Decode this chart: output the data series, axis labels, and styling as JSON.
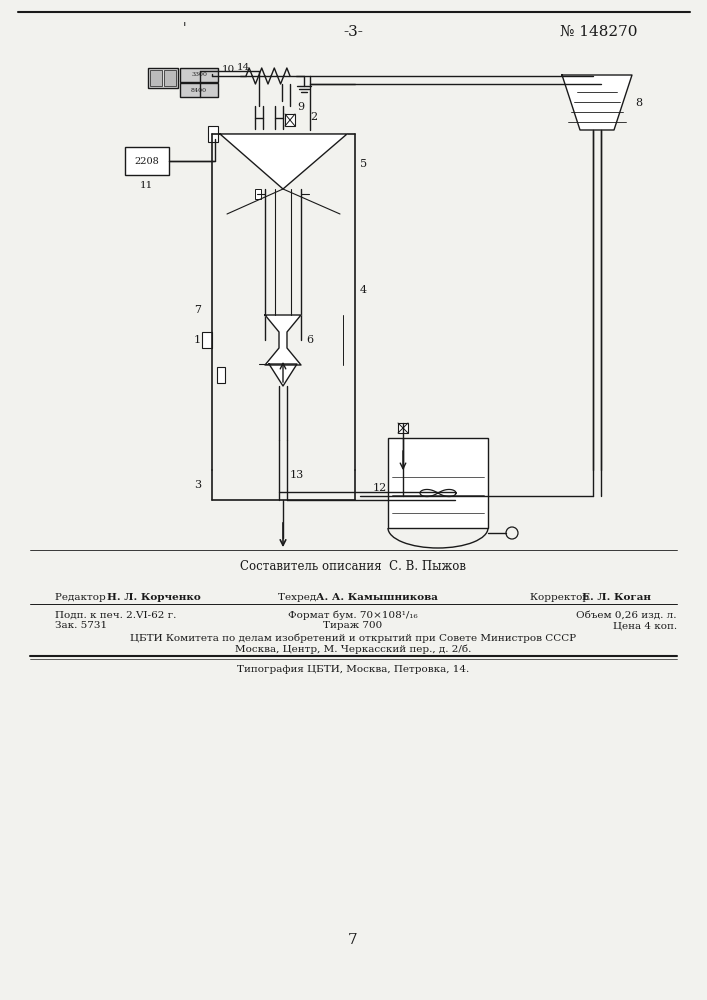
{
  "page_number": "-3-",
  "patent_number": "№ 148270",
  "page_num_bottom": "7",
  "composer_line": "Составитель описания  С. В. Пыжов",
  "editor_label": "Редактор ",
  "editor_name": "Н. Л. Корченко",
  "techred_label": "Техред ",
  "techred_name": "А. А. Камышникова",
  "corrector_label": "Корректор ",
  "corrector_name": "Е. Л. Коган",
  "line2_col1": "Подп. к печ. 2.VI-62 г.",
  "line2_col2": "Формат бум. 70×108¹/₁₆",
  "line2_col3": "Объем 0,26 изд. л.",
  "line3_col1": "Зак. 5731",
  "line3_col2": "Тираж 700",
  "line3_col3": "Цена 4 коп.",
  "institution_line1": "ЦБТИ Комитета по делам изобретений и открытий при Совете Министров СССР",
  "institution_line2": "Москва, Центр, М. Черкасский пер., д. 2/б.",
  "print_line": "Типография ЦБТИ, Москва, Петровка, 14.",
  "bg_color": "#f2f2ee",
  "line_color": "#1a1a1a"
}
